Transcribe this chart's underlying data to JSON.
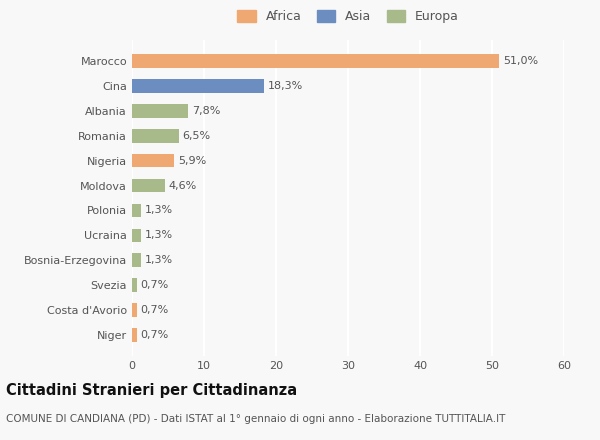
{
  "countries": [
    "Marocco",
    "Cina",
    "Albania",
    "Romania",
    "Nigeria",
    "Moldova",
    "Polonia",
    "Ucraina",
    "Bosnia-Erzegovina",
    "Svezia",
    "Costa d'Avorio",
    "Niger"
  ],
  "values": [
    51.0,
    18.3,
    7.8,
    6.5,
    5.9,
    4.6,
    1.3,
    1.3,
    1.3,
    0.7,
    0.7,
    0.7
  ],
  "labels": [
    "51,0%",
    "18,3%",
    "7,8%",
    "6,5%",
    "5,9%",
    "4,6%",
    "1,3%",
    "1,3%",
    "1,3%",
    "0,7%",
    "0,7%",
    "0,7%"
  ],
  "colors": [
    "#f0a872",
    "#6b8dbf",
    "#a8ba8a",
    "#a8ba8a",
    "#f0a872",
    "#a8ba8a",
    "#a8ba8a",
    "#a8ba8a",
    "#a8ba8a",
    "#a8ba8a",
    "#f0a872",
    "#f0a872"
  ],
  "legend_labels": [
    "Africa",
    "Asia",
    "Europa"
  ],
  "legend_colors": [
    "#f0a872",
    "#6b8dbf",
    "#a8ba8a"
  ],
  "xlim": [
    0,
    60
  ],
  "xticks": [
    0,
    10,
    20,
    30,
    40,
    50,
    60
  ],
  "title_bold": "Cittadini Stranieri per Cittadinanza",
  "title_sub": "COMUNE DI CANDIANA (PD) - Dati ISTAT al 1° gennaio di ogni anno - Elaborazione TUTTITALIA.IT",
  "bg_color": "#f8f8f8",
  "grid_color": "#ffffff",
  "bar_height": 0.55,
  "label_fontsize": 8,
  "tick_fontsize": 8,
  "title_fontsize": 10.5,
  "sub_fontsize": 7.5,
  "text_color": "#555555",
  "title_color": "#111111"
}
